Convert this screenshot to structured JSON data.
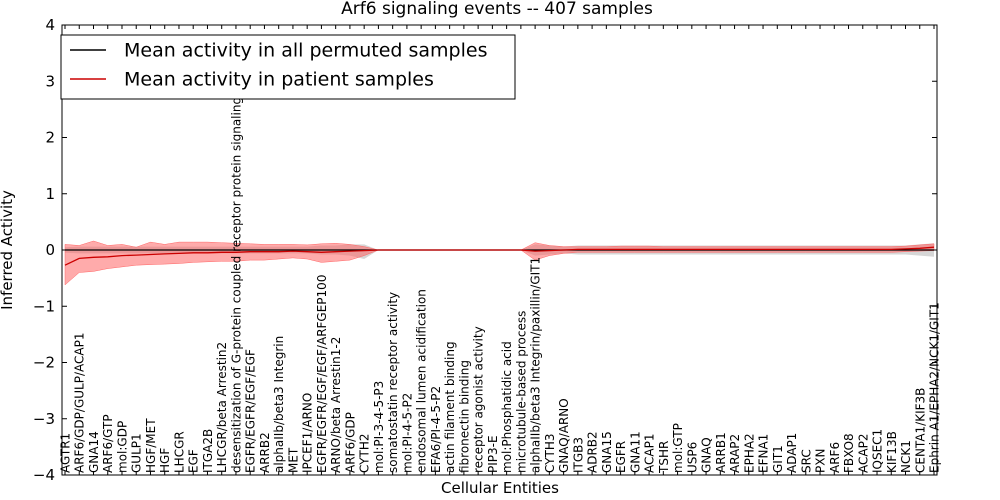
{
  "chart_data": {
    "type": "line",
    "title": "Arf6 signaling events -- 407 samples",
    "xlabel": "Cellular Entities",
    "ylabel": "Inferred Activity",
    "ylim": [
      -4,
      4
    ],
    "yticks": [
      -4,
      -3,
      -2,
      -1,
      0,
      1,
      2,
      3,
      4
    ],
    "legend": {
      "position": "top-left",
      "entries": [
        {
          "label": "Mean activity in all permuted samples",
          "color": "#000000"
        },
        {
          "label": "Mean activity in patient samples",
          "color": "#cc0000"
        }
      ]
    },
    "colors": {
      "patient_line": "#cc0000",
      "patient_band": "#ff6666",
      "permuted_line": "#000000",
      "permuted_band": "#bbbbbb"
    },
    "categories": [
      "AGTR1",
      "ARF6/GDP/GULP/ACAP1",
      "GNA14",
      "ARF6/GTP",
      "mol:GDP",
      "GULP1",
      "HGF/MET",
      "HGF",
      "LHCGR",
      "EGF",
      "ITGA2B",
      "LHCGR/beta Arrestin2",
      "desensitization of G-protein coupled receptor protein signaling pathway",
      "EGFR/EGFR/EGF/EGF",
      "ARRB2",
      "alphaIIb/beta3 Integrin",
      "MET",
      "IPCEF1/ARNO",
      "EGFR/EGFR/EGF/EGF/ARFGEP100",
      "ARNO/beta Arrestin1-2",
      "ARF6/GDP",
      "CYTH2",
      "mol:PI-3-4-5-P3",
      "somatostatin receptor activity",
      "mol:PI-4-5-P2",
      "endosomal lumen acidification",
      "EFA6/PI-4-5-P2",
      "actin filament binding",
      "fibronectin binding",
      "receptor agonist activity",
      "PIP3-E",
      "mol:Phosphatidic acid",
      "microtubule-based process",
      "alphaIIb/beta3 Integrin/paxillin/GIT1",
      "CYTH3",
      "GNAQ/ARNO",
      "ITGB3",
      "ADRB2",
      "GNA15",
      "EGFR",
      "GNA11",
      "ACAP1",
      "TSHR",
      "mol:GTP",
      "USP6",
      "GNAQ",
      "ARRB1",
      "ARAP2",
      "EPHA2",
      "EFNA1",
      "GIT1",
      "ADAP1",
      "SRC",
      "PXN",
      "ARF6",
      "FBXO8",
      "ACAP2",
      "IQSEC1",
      "KIF13B",
      "NCK1",
      "CENTA1/KIF3B",
      "Ephrin A1/EPHA2/NCK1/GIT1"
    ],
    "series": [
      {
        "name": "Mean activity in patient samples",
        "values": [
          -0.27,
          -0.15,
          -0.13,
          -0.12,
          -0.1,
          -0.09,
          -0.08,
          -0.07,
          -0.06,
          -0.05,
          -0.05,
          -0.04,
          -0.04,
          -0.03,
          -0.03,
          -0.03,
          -0.02,
          -0.03,
          -0.04,
          -0.03,
          -0.02,
          -0.01,
          0.0,
          0.0,
          0.0,
          0.0,
          0.0,
          0.0,
          0.0,
          0.0,
          0.0,
          0.0,
          0.0,
          -0.02,
          -0.01,
          0.0,
          0.01,
          0.01,
          0.01,
          0.01,
          0.01,
          0.01,
          0.01,
          0.01,
          0.01,
          0.01,
          0.01,
          0.01,
          0.01,
          0.01,
          0.01,
          0.01,
          0.01,
          0.01,
          0.01,
          0.01,
          0.01,
          0.01,
          0.01,
          0.02,
          0.03,
          0.05
        ],
        "lower": [
          -0.62,
          -0.4,
          -0.38,
          -0.33,
          -0.3,
          -0.27,
          -0.26,
          -0.25,
          -0.24,
          -0.22,
          -0.21,
          -0.2,
          -0.2,
          -0.18,
          -0.18,
          -0.16,
          -0.14,
          -0.16,
          -0.22,
          -0.2,
          -0.18,
          -0.1,
          0.0,
          0.0,
          0.0,
          0.0,
          0.0,
          0.0,
          0.0,
          0.0,
          0.0,
          0.0,
          0.0,
          -0.18,
          -0.1,
          -0.06,
          -0.04,
          -0.04,
          -0.04,
          -0.04,
          -0.04,
          -0.04,
          -0.04,
          -0.04,
          -0.04,
          -0.04,
          -0.04,
          -0.04,
          -0.04,
          -0.04,
          -0.04,
          -0.04,
          -0.04,
          -0.04,
          -0.04,
          -0.04,
          -0.04,
          -0.04,
          -0.04,
          -0.03,
          -0.02,
          -0.01
        ],
        "upper": [
          0.1,
          0.08,
          0.16,
          0.08,
          0.1,
          0.05,
          0.14,
          0.1,
          0.14,
          0.14,
          0.14,
          0.13,
          0.12,
          0.11,
          0.1,
          0.1,
          0.1,
          0.09,
          0.11,
          0.12,
          0.1,
          0.06,
          0.0,
          0.0,
          0.0,
          0.0,
          0.0,
          0.0,
          0.0,
          0.0,
          0.0,
          0.0,
          0.0,
          0.13,
          0.08,
          0.06,
          0.06,
          0.06,
          0.06,
          0.07,
          0.07,
          0.07,
          0.06,
          0.06,
          0.06,
          0.06,
          0.06,
          0.06,
          0.06,
          0.06,
          0.06,
          0.06,
          0.06,
          0.06,
          0.06,
          0.06,
          0.06,
          0.06,
          0.06,
          0.07,
          0.09,
          0.11
        ]
      },
      {
        "name": "Mean activity in all permuted samples",
        "values": [
          0,
          0,
          0,
          0,
          0,
          0,
          0,
          0,
          0,
          0,
          0,
          0,
          0,
          0,
          0,
          0,
          0,
          0,
          0,
          0,
          0,
          0,
          0,
          0,
          0,
          0,
          0,
          0,
          0,
          0,
          0,
          0,
          0,
          0,
          0,
          0,
          0,
          0,
          0,
          0,
          0,
          0,
          0,
          0,
          0,
          0,
          0,
          0,
          0,
          0,
          0,
          0,
          0,
          0,
          0,
          0,
          0,
          0,
          0,
          0,
          0,
          0
        ],
        "lower": [
          -0.05,
          -0.06,
          -0.06,
          -0.06,
          -0.06,
          -0.06,
          -0.06,
          -0.06,
          -0.06,
          -0.06,
          -0.06,
          -0.06,
          -0.06,
          -0.06,
          -0.06,
          -0.06,
          -0.06,
          -0.06,
          -0.08,
          -0.08,
          -0.1,
          -0.16,
          0.0,
          0.0,
          0.0,
          0.0,
          0.0,
          0.0,
          0.0,
          0.0,
          0.0,
          0.0,
          0.0,
          -0.1,
          -0.08,
          -0.06,
          -0.08,
          -0.08,
          -0.08,
          -0.08,
          -0.08,
          -0.08,
          -0.08,
          -0.08,
          -0.08,
          -0.08,
          -0.08,
          -0.08,
          -0.08,
          -0.08,
          -0.08,
          -0.08,
          -0.08,
          -0.08,
          -0.08,
          -0.08,
          -0.08,
          -0.08,
          -0.08,
          -0.08,
          -0.1,
          -0.12
        ],
        "upper": [
          0.05,
          0.06,
          0.06,
          0.06,
          0.06,
          0.06,
          0.06,
          0.06,
          0.06,
          0.06,
          0.06,
          0.06,
          0.06,
          0.06,
          0.06,
          0.06,
          0.06,
          0.06,
          0.08,
          0.08,
          0.1,
          0.1,
          0.0,
          0.0,
          0.0,
          0.0,
          0.0,
          0.0,
          0.0,
          0.0,
          0.0,
          0.0,
          0.0,
          0.1,
          0.08,
          0.06,
          0.08,
          0.08,
          0.08,
          0.08,
          0.08,
          0.08,
          0.08,
          0.08,
          0.08,
          0.08,
          0.08,
          0.08,
          0.08,
          0.08,
          0.08,
          0.08,
          0.08,
          0.08,
          0.08,
          0.08,
          0.08,
          0.08,
          0.08,
          0.08,
          0.1,
          0.12
        ]
      }
    ]
  }
}
